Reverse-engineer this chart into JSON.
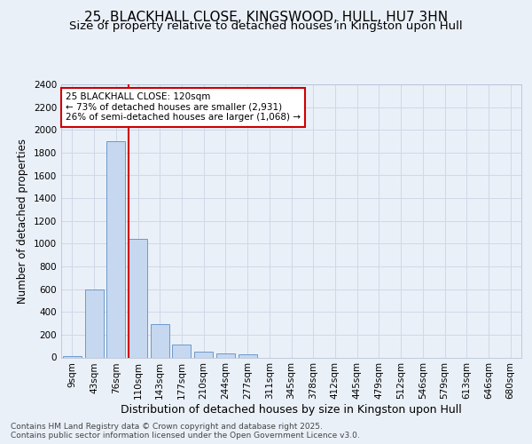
{
  "title1": "25, BLACKHALL CLOSE, KINGSWOOD, HULL, HU7 3HN",
  "title2": "Size of property relative to detached houses in Kingston upon Hull",
  "xlabel": "Distribution of detached houses by size in Kingston upon Hull",
  "ylabel": "Number of detached properties",
  "footer": "Contains HM Land Registry data © Crown copyright and database right 2025.\nContains public sector information licensed under the Open Government Licence v3.0.",
  "bin_labels": [
    "9sqm",
    "43sqm",
    "76sqm",
    "110sqm",
    "143sqm",
    "177sqm",
    "210sqm",
    "244sqm",
    "277sqm",
    "311sqm",
    "345sqm",
    "378sqm",
    "412sqm",
    "445sqm",
    "479sqm",
    "512sqm",
    "546sqm",
    "579sqm",
    "613sqm",
    "646sqm",
    "680sqm"
  ],
  "bar_heights": [
    15,
    600,
    1900,
    1040,
    295,
    115,
    48,
    35,
    25,
    0,
    0,
    0,
    0,
    0,
    0,
    0,
    0,
    0,
    0,
    0,
    0
  ],
  "bar_color": "#c5d8f0",
  "bar_edge_color": "#5b8ec4",
  "annotation_text": "25 BLACKHALL CLOSE: 120sqm\n← 73% of detached houses are smaller (2,931)\n26% of semi-detached houses are larger (1,068) →",
  "annotation_box_color": "#ffffff",
  "annotation_box_edge": "#cc0000",
  "vline_color": "#cc0000",
  "ylim": [
    0,
    2400
  ],
  "yticks": [
    0,
    200,
    400,
    600,
    800,
    1000,
    1200,
    1400,
    1600,
    1800,
    2000,
    2200,
    2400
  ],
  "grid_color": "#d0d8e8",
  "bg_color": "#eaf0f8",
  "plot_bg_color": "#eaf0f8",
  "title1_fontsize": 11,
  "title2_fontsize": 9.5,
  "xlabel_fontsize": 9,
  "ylabel_fontsize": 8.5,
  "tick_fontsize": 7.5,
  "annotation_fontsize": 7.5,
  "footer_fontsize": 6.5
}
